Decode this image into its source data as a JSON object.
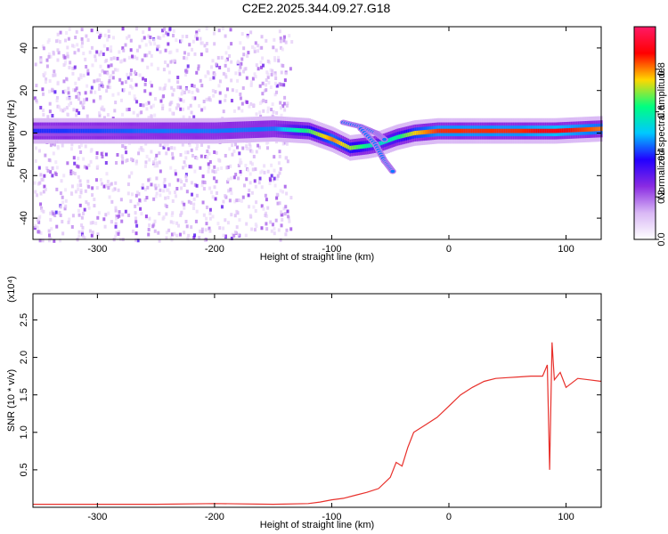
{
  "title": "C2E2.2025.344.09.27.G18",
  "colors": {
    "snr_line": "#e8302b",
    "spectrum_scale": [
      "#ffffff",
      "#d9b8f5",
      "#8a2be2",
      "#2200ff",
      "#00c8ff",
      "#00ff80",
      "#ffd700",
      "#ff0000",
      "#ff1a66"
    ]
  },
  "chart_data": [
    {
      "type": "heatmap",
      "xlabel": "Height of straight line (km)",
      "ylabel": "Frequency (Hz)",
      "xlim": [
        -355,
        130
      ],
      "ylim": [
        -50,
        50
      ],
      "xticks": [
        -300,
        -200,
        -100,
        0,
        100
      ],
      "yticks": [
        -40,
        -20,
        0,
        20,
        40
      ],
      "xtick_labels": [
        "-300",
        "-200",
        "-100",
        "0",
        "100"
      ],
      "ytick_labels": [
        "-40",
        "-20",
        "0",
        "20",
        "40"
      ],
      "colorbar": {
        "label": "Normalized spectral amplitude",
        "range": [
          0,
          1
        ],
        "ticks": [
          0.0,
          0.2,
          0.4,
          0.6,
          0.8
        ],
        "tick_labels": [
          "0.0",
          "0.2",
          "0.4",
          "0.6",
          "0.8"
        ]
      },
      "noise_region_x": [
        -355,
        -135
      ],
      "ridge": [
        {
          "x": -355,
          "y": 1,
          "amp": 0.4
        },
        {
          "x": -300,
          "y": 1,
          "amp": 0.42
        },
        {
          "x": -250,
          "y": 1,
          "amp": 0.45
        },
        {
          "x": -200,
          "y": 1,
          "amp": 0.45
        },
        {
          "x": -150,
          "y": 2,
          "amp": 0.45
        },
        {
          "x": -120,
          "y": 1,
          "amp": 0.65
        },
        {
          "x": -100,
          "y": -3,
          "amp": 0.8
        },
        {
          "x": -85,
          "y": -7,
          "amp": 0.7
        },
        {
          "x": -70,
          "y": -6,
          "amp": 0.6
        },
        {
          "x": -60,
          "y": -5,
          "amp": 0.55
        },
        {
          "x": -45,
          "y": -2,
          "amp": 0.6
        },
        {
          "x": -30,
          "y": 0,
          "amp": 0.75
        },
        {
          "x": -10,
          "y": 1,
          "amp": 0.85
        },
        {
          "x": 20,
          "y": 1,
          "amp": 0.85
        },
        {
          "x": 60,
          "y": 1,
          "amp": 0.85
        },
        {
          "x": 90,
          "y": 1,
          "amp": 0.9
        },
        {
          "x": 130,
          "y": 2,
          "amp": 0.8
        }
      ],
      "branches": [
        [
          {
            "x": -90,
            "y": 5
          },
          {
            "x": -75,
            "y": 3
          },
          {
            "x": -62,
            "y": 0
          },
          {
            "x": -55,
            "y": -3
          }
        ],
        [
          {
            "x": -75,
            "y": 2
          },
          {
            "x": -63,
            "y": -5
          },
          {
            "x": -55,
            "y": -13
          },
          {
            "x": -48,
            "y": -18
          }
        ]
      ]
    },
    {
      "type": "line",
      "xlabel": "Height of straight line (km)",
      "ylabel": "SNR (10 * v/v)",
      "y_multiplier": "(x10⁴)",
      "xlim": [
        -355,
        130
      ],
      "ylim": [
        0,
        2.85
      ],
      "xticks": [
        -300,
        -200,
        -100,
        0,
        100
      ],
      "yticks": [
        0.5,
        1.0,
        1.5,
        2.0,
        2.5
      ],
      "xtick_labels": [
        "-300",
        "-200",
        "-100",
        "0",
        "100"
      ],
      "ytick_labels": [
        "0.5",
        "1.0",
        "1.5",
        "2.0",
        "2.5"
      ],
      "series": [
        {
          "x": [
            -355,
            -300,
            -250,
            -200,
            -150,
            -120,
            -110,
            -100,
            -90,
            -80,
            -70,
            -60,
            -50,
            -45,
            -40,
            -35,
            -30,
            -20,
            -10,
            0,
            10,
            20,
            30,
            40,
            50,
            60,
            70,
            80,
            84,
            86,
            88,
            90,
            95,
            100,
            110,
            120,
            130
          ],
          "y": [
            0.04,
            0.04,
            0.04,
            0.05,
            0.04,
            0.05,
            0.07,
            0.1,
            0.12,
            0.16,
            0.2,
            0.25,
            0.4,
            0.6,
            0.55,
            0.8,
            1.0,
            1.1,
            1.2,
            1.35,
            1.5,
            1.6,
            1.68,
            1.72,
            1.73,
            1.74,
            1.75,
            1.75,
            1.9,
            0.5,
            2.2,
            1.7,
            1.8,
            1.6,
            1.72,
            1.7,
            1.68
          ]
        }
      ]
    }
  ]
}
